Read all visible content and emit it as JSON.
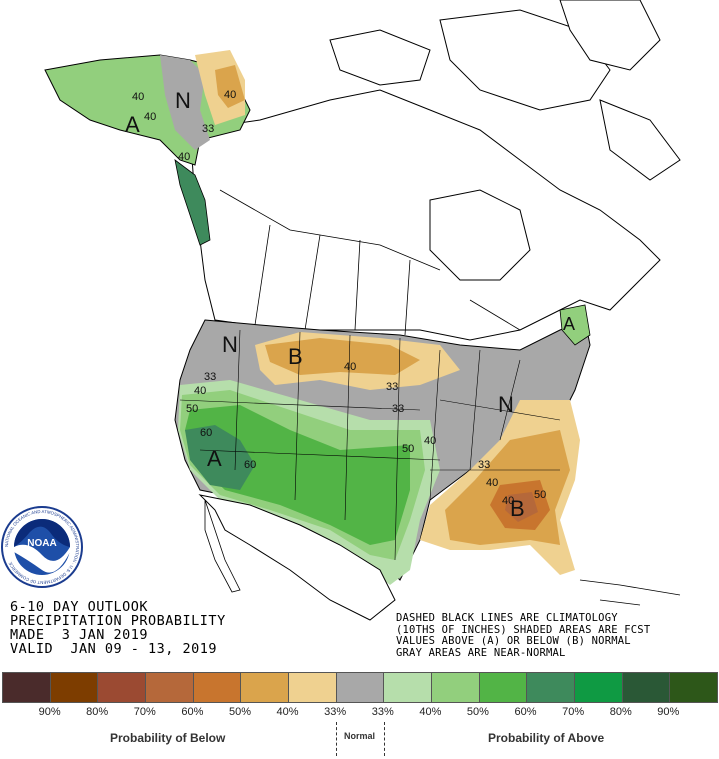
{
  "title": {
    "line1": "6-10 DAY OUTLOOK",
    "line2": "PRECIPITATION PROBABILITY",
    "line3": "MADE  3 JAN 2019",
    "line4": "VALID  JAN 09 - 13, 2019"
  },
  "notes": {
    "line1": "DASHED BLACK LINES ARE CLIMATOLOGY",
    "line2": "(10THS OF INCHES) SHADED AREAS ARE FCST",
    "line3": "VALUES ABOVE (A) OR BELOW (B) NORMAL",
    "line4": "GRAY AREAS ARE NEAR-NORMAL"
  },
  "logo": {
    "text": "NOAA",
    "ring_text": "NATIONAL OCEANIC AND ATMOSPHERIC ADMINISTRATION · U.S. DEPARTMENT OF COMMERCE"
  },
  "legend": {
    "swatch_colors": [
      "#4a2b2b",
      "#7d3d00",
      "#9b4a32",
      "#b5683a",
      "#c8752e",
      "#daa44c",
      "#efd190",
      "#a8a8a8",
      "#b6deab",
      "#92cf7d",
      "#52b446",
      "#3e8a5c",
      "#0f9a43",
      "#2a5836",
      "#2d5719"
    ],
    "labels": [
      "90%",
      "80%",
      "70%",
      "60%",
      "50%",
      "40%",
      "33%",
      "33%",
      "40%",
      "50%",
      "60%",
      "70%",
      "80%",
      "90%"
    ],
    "below_label": "Probability of Below",
    "normal_label": "Normal",
    "above_label": "Probability of Above"
  },
  "map_labels": {
    "letters": [
      {
        "text": "N",
        "id": "alaska-n"
      },
      {
        "text": "A",
        "id": "alaska-a"
      },
      {
        "text": "B",
        "id": "north-plains-b"
      },
      {
        "text": "N",
        "id": "pacific-nw-n"
      },
      {
        "text": "A",
        "id": "california-a"
      },
      {
        "text": "N",
        "id": "ohio-valley-n"
      },
      {
        "text": "B",
        "id": "southeast-b"
      },
      {
        "text": "A",
        "id": "new-england-a"
      }
    ],
    "contours": [
      "40",
      "40",
      "40",
      "33",
      "40",
      "40",
      "33",
      "33",
      "40",
      "50",
      "60",
      "60",
      "33",
      "40",
      "50",
      "50",
      "40",
      "40",
      "33"
    ]
  }
}
